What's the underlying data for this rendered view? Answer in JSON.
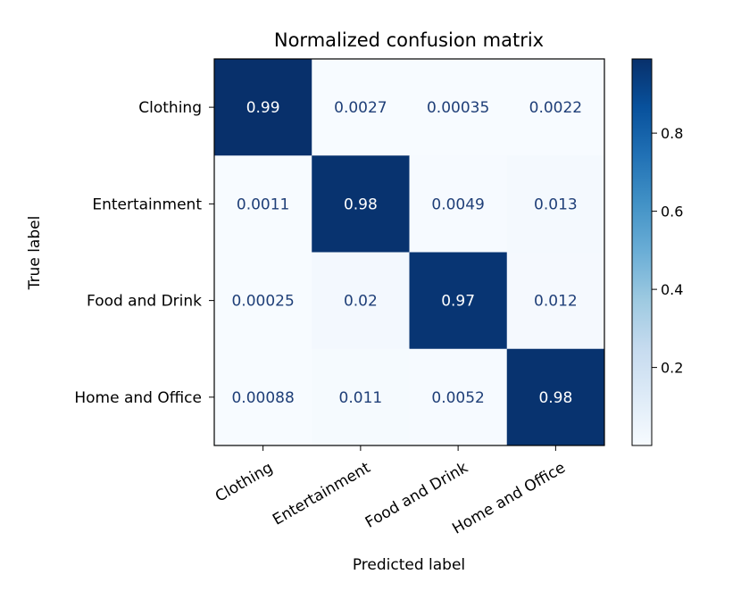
{
  "chart_data": {
    "type": "heatmap",
    "title": "Normalized confusion matrix",
    "xlabel": "Predicted label",
    "ylabel": "True label",
    "x_categories": [
      "Clothing",
      "Entertainment",
      "Food and Drink",
      "Home and Office"
    ],
    "y_categories": [
      "Clothing",
      "Entertainment",
      "Food and Drink",
      "Home and Office"
    ],
    "values": [
      [
        0.99,
        0.0027,
        0.00035,
        0.0022
      ],
      [
        0.0011,
        0.98,
        0.0049,
        0.013
      ],
      [
        0.00025,
        0.02,
        0.97,
        0.012
      ],
      [
        0.00088,
        0.011,
        0.0052,
        0.98
      ]
    ],
    "labels": [
      [
        "0.99",
        "0.0027",
        "0.00035",
        "0.0022"
      ],
      [
        "0.0011",
        "0.98",
        "0.0049",
        "0.013"
      ],
      [
        "0.00025",
        "0.02",
        "0.97",
        "0.012"
      ],
      [
        "0.00088",
        "0.011",
        "0.0052",
        "0.98"
      ]
    ],
    "colormap": "Blues",
    "colorbar": {
      "range": [
        0.00025,
        0.99
      ],
      "ticks": [
        0.2,
        0.4,
        0.6,
        0.8
      ],
      "tick_labels": [
        "0.2",
        "0.4",
        "0.6",
        "0.8"
      ]
    },
    "grid": false
  }
}
